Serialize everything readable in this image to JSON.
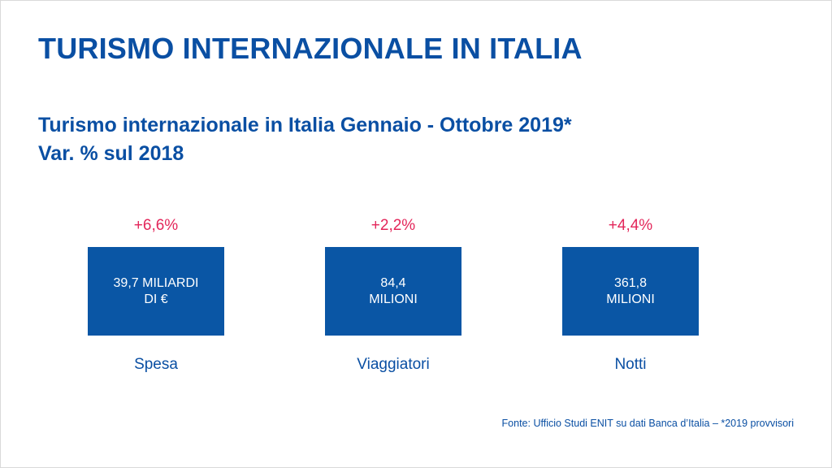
{
  "title": "TURISMO INTERNAZIONALE IN ITALIA",
  "subtitle": {
    "line1": "Turismo internazionale in Italia Gennaio - Ottobre 2019*",
    "line2": "Var. % sul 2018"
  },
  "metrics": [
    {
      "change": "+6,6%",
      "value_line1": "39,7 MILIARDI",
      "value_line2": "DI €",
      "label": "Spesa"
    },
    {
      "change": "+2,2%",
      "value_line1": "84,4",
      "value_line2": "MILIONI",
      "label": "Viaggiatori"
    },
    {
      "change": "+4,4%",
      "value_line1": "361,8",
      "value_line2": "MILIONI",
      "label": "Notti"
    }
  ],
  "source": "Fonte: Ufficio Studi ENIT su dati Banca d’Italia – *2019 provvisori",
  "colors": {
    "primary_blue": "#0a4fa3",
    "box_blue": "#0a56a5",
    "accent_red": "#e3265a"
  }
}
